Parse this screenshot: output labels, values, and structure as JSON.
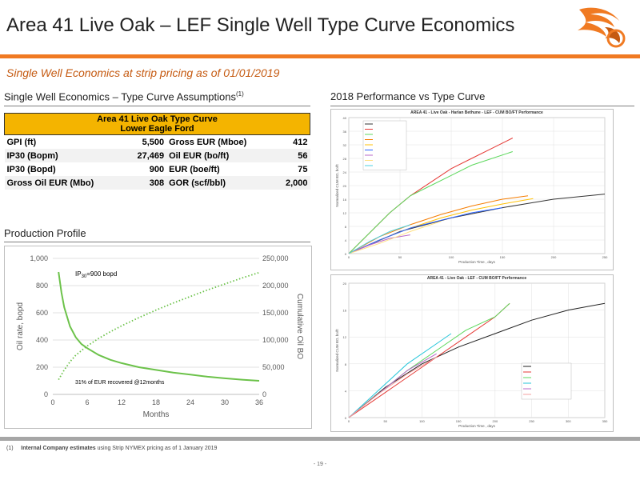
{
  "header": {
    "title": "Area 41 Live Oak – LEF Single Well Type Curve Economics",
    "subtitle": "Single Well Economics at strip pricing as of 01/01/2019"
  },
  "assumptions": {
    "heading": "Single Well Economics – Type Curve Assumptions",
    "heading_note": "(1)",
    "table_title_1": "Area 41 Live Oak Type Curve",
    "table_title_2": "Lower Eagle Ford",
    "rows": [
      {
        "l_label": "GPI (ft)",
        "l_value": "5,500",
        "r_label": "Gross EUR  (Mboe)",
        "r_value": "412"
      },
      {
        "l_label": "IP30 (Bopm)",
        "l_value": "27,469",
        "r_label": "Oil EUR (bo/ft)",
        "r_value": "56"
      },
      {
        "l_label": "IP30 (Bopd)",
        "l_value": "900",
        "r_label": "EUR (boe/ft)",
        "r_value": "75"
      },
      {
        "l_label": "Gross Oil EUR (Mbo)",
        "l_value": "308",
        "r_label": "GOR (scf/bbl)",
        "r_value": "2,000"
      }
    ]
  },
  "production": {
    "heading": "Production Profile",
    "annotation_ip_main": "IP",
    "annotation_ip_sub": "30",
    "annotation_ip_rest": "=900 bopd",
    "annotation_eur": "31% of EUR recovered @12months"
  },
  "performance": {
    "heading": "2018 Performance vs Type Curve",
    "chart1_title": "AREA 41 - Live Oak - Harlan Bethune - LEF - CUM BO/FT Performance",
    "chart2_title": "AREA 41 - Live Oak - LEF - CUM BO/FT Performance"
  },
  "footer": {
    "footnote_num": "(1)",
    "footnote_bold": "Internal Company estimates",
    "footnote_rest": "using Strip NYMEX pricing as of 1 January 2019",
    "page": "- 19 -"
  },
  "colors": {
    "accent": "#f07a22",
    "subtitle": "#c55a11",
    "table_header": "#f4b400",
    "oil_rate_line": "#6cc24a"
  },
  "chart_data": [
    {
      "type": "line",
      "xlabel": "Months",
      "ylabel": "Oil rate, bopd",
      "y2label": "Cumulative Oil BO",
      "xlim": [
        0,
        36
      ],
      "ylim": [
        0,
        1000
      ],
      "y2lim": [
        0,
        250000
      ],
      "x_ticks": [
        0,
        6,
        12,
        18,
        24,
        30,
        36
      ],
      "x_tick_labels": [
        "0",
        "6",
        "12",
        "18",
        "24",
        "30",
        "36"
      ],
      "y_ticks": [
        0,
        200,
        400,
        600,
        800,
        1000
      ],
      "y_tick_labels": [
        "0",
        "200",
        "400",
        "600",
        "800",
        "1,000"
      ],
      "y2_ticks": [
        0,
        50000,
        100000,
        150000,
        200000,
        250000
      ],
      "y2_tick_labels": [
        "0",
        "50,000",
        "100,000",
        "150,000",
        "200,000",
        "250,000"
      ],
      "series": [
        {
          "axis": "left",
          "style": "solid",
          "color": "#6cc24a",
          "x": [
            1,
            1.5,
            2,
            3,
            4,
            5,
            6,
            8,
            10,
            12,
            15,
            18,
            21,
            24,
            27,
            30,
            33,
            36
          ],
          "values": [
            900,
            750,
            640,
            500,
            420,
            370,
            340,
            290,
            255,
            230,
            200,
            180,
            160,
            145,
            130,
            118,
            108,
            100
          ]
        },
        {
          "axis": "right",
          "style": "dotted",
          "color": "#6cc24a",
          "x": [
            1,
            2,
            3,
            4,
            6,
            8,
            10,
            12,
            15,
            18,
            21,
            24,
            27,
            30,
            33,
            36
          ],
          "values": [
            27000,
            45000,
            60000,
            72000,
            89000,
            103000,
            115000,
            126000,
            141000,
            155000,
            168000,
            180000,
            192000,
            203000,
            214000,
            224000
          ]
        }
      ]
    },
    {
      "type": "line",
      "title": "AREA 41 - Live Oak - Harlan Bethune - LEF - CUM BO/FT Performance",
      "xlabel": "Production Time , days",
      "ylabel": "Normalized CUM BO, bo/ft",
      "xlim": [
        0,
        250
      ],
      "ylim": [
        0,
        40
      ],
      "x_ticks": [
        0,
        50,
        100,
        150,
        200,
        250
      ],
      "y_ticks": [
        0,
        4,
        8,
        12,
        16,
        20,
        24,
        28,
        32,
        36,
        40
      ],
      "series": [
        {
          "name": "type",
          "color": "#333333",
          "x": [
            0,
            50,
            100,
            150,
            200,
            250
          ],
          "values": [
            0,
            6.5,
            10.5,
            13.5,
            16,
            17.5
          ]
        },
        {
          "name": "s1",
          "color": "#e53935",
          "x": [
            0,
            20,
            40,
            60,
            80,
            100,
            120,
            140,
            160
          ],
          "values": [
            0,
            6,
            12,
            17,
            21,
            25,
            28,
            31,
            34
          ]
        },
        {
          "name": "s2",
          "color": "#5dd85d",
          "x": [
            0,
            20,
            40,
            60,
            80,
            100,
            120,
            140,
            160
          ],
          "values": [
            0,
            6,
            12,
            17,
            20,
            23,
            26,
            28,
            30
          ]
        },
        {
          "name": "s3",
          "color": "#f57c00",
          "x": [
            0,
            30,
            60,
            90,
            120,
            150,
            175
          ],
          "values": [
            0,
            5,
            8.5,
            11.5,
            14,
            16,
            17
          ]
        },
        {
          "name": "s4",
          "color": "#ffc107",
          "x": [
            0,
            30,
            60,
            90,
            120,
            150,
            180
          ],
          "values": [
            0,
            4,
            7.5,
            10.5,
            12.8,
            14.6,
            16.2
          ]
        },
        {
          "name": "s5",
          "color": "#2962ff",
          "x": [
            0,
            30,
            60,
            90,
            120,
            150
          ],
          "values": [
            0,
            4,
            7.5,
            9.8,
            12,
            13.5
          ]
        },
        {
          "name": "s6",
          "color": "#ba68c8",
          "x": [
            0,
            20,
            40,
            60
          ],
          "values": [
            0,
            2.5,
            4.5,
            5.5
          ]
        },
        {
          "name": "s7",
          "color": "#ffe082",
          "x": [
            0,
            30,
            60,
            90
          ],
          "values": [
            0,
            3,
            6.5,
            9.5
          ]
        },
        {
          "name": "s8",
          "color": "#4dd0e1",
          "x": [
            0,
            20,
            40,
            60
          ],
          "values": [
            0,
            3.5,
            6.5,
            8.5
          ]
        }
      ]
    },
    {
      "type": "line",
      "title": "AREA 41 - Live Oak - LEF - CUM BO/FT Performance",
      "xlabel": "Production Time , days",
      "ylabel": "Normalized CUM BO, bo/ft",
      "xlim": [
        0,
        350
      ],
      "ylim": [
        0,
        20
      ],
      "x_ticks": [
        0,
        50,
        100,
        150,
        200,
        250,
        300,
        350
      ],
      "y_ticks": [
        0,
        4,
        8,
        12,
        16,
        20
      ],
      "series": [
        {
          "name": "type",
          "color": "#222222",
          "x": [
            0,
            50,
            100,
            150,
            200,
            250,
            300,
            350
          ],
          "values": [
            0,
            4.5,
            8,
            10.5,
            12.5,
            14.5,
            16,
            17
          ]
        },
        {
          "name": "a",
          "color": "#e53935",
          "x": [
            0,
            40,
            80,
            120,
            160,
            200,
            220
          ],
          "values": [
            0,
            3,
            6,
            9,
            12,
            15,
            17
          ]
        },
        {
          "name": "b",
          "color": "#5dd85d",
          "x": [
            0,
            40,
            80,
            120,
            160,
            200,
            220
          ],
          "values": [
            0,
            3.5,
            7,
            10,
            13,
            15,
            17
          ]
        },
        {
          "name": "c",
          "color": "#26c6da",
          "x": [
            0,
            40,
            80,
            120,
            140
          ],
          "values": [
            0,
            4,
            8,
            11,
            12.5
          ]
        },
        {
          "name": "d",
          "color": "#ba68c8",
          "x": [
            0,
            40,
            80,
            120
          ],
          "values": [
            0,
            3.5,
            7,
            9.5
          ]
        },
        {
          "name": "e",
          "color": "#f4a0a0",
          "x": [
            0,
            40,
            80,
            120
          ],
          "values": [
            0,
            3.5,
            6.5,
            9
          ]
        }
      ]
    }
  ]
}
